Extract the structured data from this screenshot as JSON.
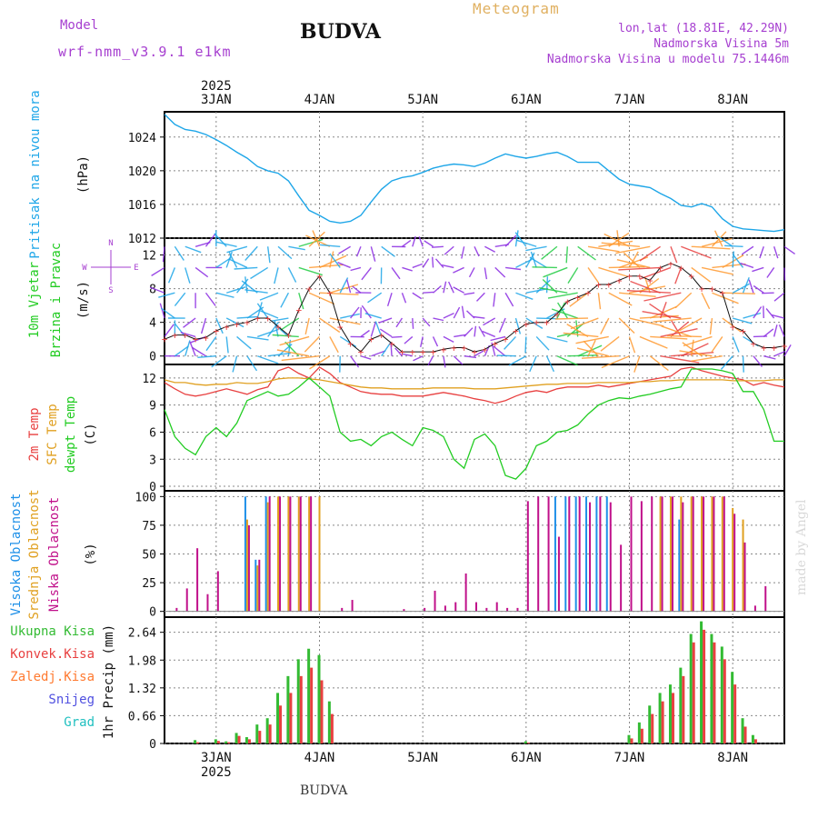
{
  "header": {
    "model_label": "Model",
    "model_name": "wrf-nmm_v3.9.1 e1km",
    "station": "BUDVA",
    "meteogram": "Meteogram",
    "lonlat": "lon,lat (18.81E, 42.29N)",
    "elevation": "Nadmorska Visina 5m",
    "elevation_model": "Nadmorska Visina u modelu 75.1446m",
    "footer_station": "BUDVA",
    "credit": "made by Angel"
  },
  "colors": {
    "pressure": "#1ea6e8",
    "wind_label": "#22cc22",
    "temp2m": "#e84040",
    "sfc_temp": "#e0a020",
    "dewpoint": "#22cc22",
    "high_cloud": "#1e90e8",
    "mid_cloud": "#e0a020",
    "low_cloud": "#c0108a",
    "total_precip": "#33bb33",
    "conv_precip": "#e84040",
    "frozen_precip": "#ff7a30",
    "snow": "#5050e0",
    "hail": "#20c0c0"
  },
  "chart_data": [
    {
      "type": "line",
      "ylabel": [
        "Pritisak na nivou mora",
        "(hPa)"
      ],
      "ylim": [
        1012,
        1027
      ],
      "yticks": [
        "1012",
        "1016",
        "1020",
        "1024"
      ],
      "x": [
        2.5,
        2.6,
        2.7,
        2.8,
        2.9,
        3.0,
        3.1,
        3.2,
        3.3,
        3.4,
        3.5,
        3.6,
        3.7,
        3.8,
        3.9,
        4.0,
        4.1,
        4.2,
        4.3,
        4.4,
        4.5,
        4.6,
        4.7,
        4.8,
        4.9,
        5.0,
        5.1,
        5.2,
        5.3,
        5.4,
        5.5,
        5.6,
        5.7,
        5.8,
        5.9,
        6.0,
        6.1,
        6.2,
        6.3,
        6.4,
        6.5,
        6.6,
        6.7,
        6.8,
        6.9,
        7.0,
        7.1,
        7.2,
        7.3,
        7.4,
        7.5,
        7.6,
        7.7,
        7.8,
        7.9,
        8.0,
        8.1,
        8.2,
        8.3,
        8.4,
        8.5
      ],
      "series": [
        {
          "values": [
            1026.7,
            1025.5,
            1024.9,
            1024.7,
            1024.3,
            1023.7,
            1023.0,
            1022.2,
            1021.5,
            1020.5,
            1020.0,
            1019.7,
            1018.8,
            1017.0,
            1015.3,
            1014.7,
            1014.0,
            1013.8,
            1014.0,
            1014.7,
            1016.3,
            1017.8,
            1018.8,
            1019.2,
            1019.4,
            1019.8,
            1020.3,
            1020.6,
            1020.8,
            1020.7,
            1020.5,
            1020.9,
            1021.5,
            1022.0,
            1021.7,
            1021.5,
            1021.7,
            1022.0,
            1022.2,
            1021.7,
            1021.0,
            1021.0,
            1021.0,
            1020.0,
            1019.0,
            1018.4,
            1018.2,
            1018.0,
            1017.3,
            1016.7,
            1015.9,
            1015.7,
            1016.1,
            1015.7,
            1014.3,
            1013.4,
            1013.1,
            1013.0,
            1012.9,
            1012.8,
            1013.0
          ]
        }
      ]
    },
    {
      "type": "line",
      "ylabel": [
        "10m Vjetar",
        "Brzina i Pravac",
        "(m/s)"
      ],
      "ylim": [
        -1,
        14
      ],
      "yticks": [
        "0",
        "4",
        "8",
        "12"
      ],
      "compass": [
        "N",
        "E",
        "W",
        "S"
      ],
      "x": [
        2.5,
        2.6,
        2.7,
        2.8,
        2.9,
        3.0,
        3.1,
        3.2,
        3.3,
        3.4,
        3.5,
        3.6,
        3.7,
        3.8,
        3.9,
        4.0,
        4.1,
        4.2,
        4.3,
        4.4,
        4.5,
        4.6,
        4.7,
        4.8,
        4.9,
        5.0,
        5.1,
        5.2,
        5.3,
        5.4,
        5.5,
        5.6,
        5.7,
        5.8,
        5.9,
        6.0,
        6.1,
        6.2,
        6.3,
        6.4,
        6.5,
        6.6,
        6.7,
        6.8,
        6.9,
        7.0,
        7.1,
        7.2,
        7.3,
        7.4,
        7.5,
        7.6,
        7.7,
        7.8,
        7.9,
        8.0,
        8.1,
        8.2,
        8.3,
        8.4,
        8.5
      ],
      "series": [
        {
          "values": [
            2.0,
            2.5,
            2.5,
            2.0,
            2.2,
            3.0,
            3.5,
            3.8,
            4.0,
            4.5,
            4.5,
            3.5,
            2.5,
            5.5,
            8.0,
            9.5,
            7.5,
            3.5,
            1.5,
            0.5,
            2.0,
            2.5,
            1.5,
            0.5,
            0.5,
            0.5,
            0.5,
            0.8,
            1.0,
            1.0,
            0.5,
            0.8,
            1.5,
            2.0,
            3.0,
            3.8,
            4.0,
            4.0,
            5.0,
            6.5,
            7.0,
            7.5,
            8.5,
            8.5,
            9.0,
            9.5,
            9.5,
            9.0,
            10.5,
            11.0,
            10.5,
            9.5,
            8.0,
            8.0,
            7.5,
            3.5,
            3.0,
            1.5,
            1.0,
            1.0,
            1.2
          ]
        }
      ]
    },
    {
      "type": "line",
      "ylabel": [
        "2m Temp",
        "SFC Temp",
        "dewpt Temp",
        "(C)"
      ],
      "ylim": [
        -0.5,
        13.5
      ],
      "yticks": [
        "0",
        "3",
        "6",
        "9",
        "12"
      ],
      "x": [
        2.5,
        2.6,
        2.7,
        2.8,
        2.9,
        3.0,
        3.1,
        3.2,
        3.3,
        3.4,
        3.5,
        3.6,
        3.7,
        3.8,
        3.9,
        4.0,
        4.1,
        4.2,
        4.3,
        4.4,
        4.5,
        4.6,
        4.7,
        4.8,
        4.9,
        5.0,
        5.1,
        5.2,
        5.3,
        5.4,
        5.5,
        5.6,
        5.7,
        5.8,
        5.9,
        6.0,
        6.1,
        6.2,
        6.3,
        6.4,
        6.5,
        6.6,
        6.7,
        6.8,
        6.9,
        7.0,
        7.1,
        7.2,
        7.3,
        7.4,
        7.5,
        7.6,
        7.7,
        7.8,
        7.9,
        8.0,
        8.1,
        8.2,
        8.3,
        8.4,
        8.5
      ],
      "series": [
        {
          "name": "2m Temp",
          "values": [
            11.5,
            10.8,
            10.2,
            10.0,
            10.2,
            10.5,
            10.8,
            10.5,
            10.2,
            10.7,
            11.0,
            12.8,
            13.2,
            12.5,
            12.0,
            13.2,
            12.5,
            11.5,
            11.0,
            10.5,
            10.3,
            10.2,
            10.2,
            10.0,
            10.0,
            10.0,
            10.2,
            10.4,
            10.2,
            10.0,
            9.7,
            9.5,
            9.2,
            9.5,
            10.0,
            10.4,
            10.6,
            10.4,
            10.8,
            11.0,
            11.0,
            11.0,
            11.2,
            11.0,
            11.2,
            11.4,
            11.6,
            11.8,
            12.0,
            12.2,
            13.0,
            13.2,
            12.8,
            12.5,
            12.2,
            12.0,
            11.8,
            11.2,
            11.5,
            11.2,
            11.0
          ]
        },
        {
          "name": "SFC Temp",
          "values": [
            11.8,
            11.5,
            11.5,
            11.3,
            11.2,
            11.3,
            11.3,
            11.5,
            11.4,
            11.4,
            11.6,
            11.9,
            12.0,
            12.0,
            11.9,
            11.8,
            11.6,
            11.4,
            11.2,
            11.0,
            10.9,
            10.9,
            10.8,
            10.8,
            10.8,
            10.8,
            10.9,
            10.9,
            10.9,
            10.9,
            10.8,
            10.8,
            10.8,
            10.9,
            11.0,
            11.1,
            11.2,
            11.3,
            11.3,
            11.4,
            11.4,
            11.4,
            11.5,
            11.5,
            11.5,
            11.5,
            11.6,
            11.6,
            11.7,
            11.7,
            11.8,
            11.8,
            11.8,
            11.8,
            11.8,
            11.7,
            11.7,
            11.7,
            11.7,
            11.8,
            11.8
          ]
        },
        {
          "name": "dewpt Temp",
          "values": [
            8.5,
            5.5,
            4.2,
            3.5,
            5.5,
            6.5,
            5.5,
            7.0,
            9.5,
            10.0,
            10.5,
            10.0,
            10.2,
            11.0,
            12.0,
            11.0,
            10.0,
            6.0,
            5.0,
            5.2,
            4.5,
            5.5,
            6.0,
            5.2,
            4.5,
            6.5,
            6.2,
            5.5,
            3.0,
            2.0,
            5.2,
            5.8,
            4.5,
            1.2,
            0.8,
            2.0,
            4.5,
            5.0,
            6.0,
            6.2,
            6.8,
            8.0,
            9.0,
            9.5,
            9.8,
            9.7,
            10.0,
            10.2,
            10.5,
            10.8,
            11.0,
            13.0,
            13.0,
            13.0,
            12.8,
            12.5,
            10.5,
            10.5,
            8.5,
            5.0,
            5.0
          ]
        }
      ]
    },
    {
      "type": "bar",
      "ylabel": [
        "Visoka Oblacnost",
        "Srednja Oblacnost",
        "Niska Oblacnost",
        "(%)"
      ],
      "ylim": [
        -5,
        105
      ],
      "yticks": [
        "0",
        "25",
        "50",
        "75",
        "100"
      ],
      "x": [
        2.5,
        2.6,
        2.7,
        2.8,
        2.9,
        3.0,
        3.1,
        3.2,
        3.3,
        3.4,
        3.5,
        3.6,
        3.7,
        3.8,
        3.9,
        4.0,
        4.1,
        4.2,
        4.3,
        4.4,
        4.5,
        4.6,
        4.7,
        4.8,
        4.9,
        5.0,
        5.1,
        5.2,
        5.3,
        5.4,
        5.5,
        5.6,
        5.7,
        5.8,
        5.9,
        6.0,
        6.1,
        6.2,
        6.3,
        6.4,
        6.5,
        6.6,
        6.7,
        6.8,
        6.9,
        7.0,
        7.1,
        7.2,
        7.3,
        7.4,
        7.5,
        7.6,
        7.7,
        7.8,
        7.9,
        8.0,
        8.1,
        8.2,
        8.3,
        8.4,
        8.5
      ],
      "series": [
        {
          "name": "Visoka Oblacnost",
          "values": [
            0,
            0,
            0,
            0,
            0,
            0,
            0,
            0,
            100,
            45,
            100,
            0,
            0,
            0,
            0,
            0,
            0,
            0,
            0,
            0,
            0,
            0,
            0,
            0,
            0,
            0,
            0,
            0,
            0,
            0,
            0,
            0,
            0,
            0,
            0,
            0,
            0,
            0,
            100,
            100,
            100,
            100,
            100,
            100,
            0,
            0,
            0,
            0,
            0,
            0,
            80,
            0,
            0,
            0,
            0,
            0,
            0,
            0,
            0,
            0,
            0
          ]
        },
        {
          "name": "Srednja Oblacnost",
          "values": [
            0,
            0,
            0,
            0,
            0,
            0,
            0,
            0,
            80,
            40,
            95,
            100,
            100,
            100,
            100,
            100,
            0,
            0,
            0,
            0,
            0,
            0,
            0,
            0,
            0,
            0,
            0,
            0,
            0,
            0,
            0,
            0,
            0,
            0,
            0,
            0,
            0,
            0,
            0,
            0,
            0,
            0,
            0,
            0,
            0,
            0,
            0,
            0,
            100,
            100,
            100,
            100,
            100,
            100,
            100,
            90,
            80,
            0,
            0,
            0,
            0
          ]
        },
        {
          "name": "Niska Oblacnost",
          "values": [
            0,
            3,
            20,
            55,
            15,
            35,
            0,
            0,
            75,
            45,
            100,
            100,
            100,
            100,
            100,
            0,
            0,
            3,
            10,
            0,
            0,
            0,
            0,
            2,
            0,
            3,
            18,
            5,
            8,
            33,
            8,
            3,
            8,
            3,
            3,
            96,
            100,
            100,
            65,
            100,
            100,
            95,
            100,
            95,
            58,
            100,
            96,
            100,
            100,
            100,
            95,
            100,
            100,
            100,
            100,
            85,
            60,
            5,
            22,
            0,
            0
          ]
        }
      ]
    },
    {
      "type": "bar",
      "ylabel": [
        "1hr Precip (mm)"
      ],
      "legend": [
        "Ukupna Kisa",
        "Konvek.Kisa",
        "Zaledj.Kisa",
        "Snijeg",
        "Grad"
      ],
      "ylim": [
        0,
        3.0
      ],
      "yticks": [
        "0",
        "0.66",
        "1.32",
        "1.98",
        "2.64"
      ],
      "x": [
        2.5,
        2.6,
        2.7,
        2.8,
        2.9,
        3.0,
        3.1,
        3.2,
        3.3,
        3.4,
        3.5,
        3.6,
        3.7,
        3.8,
        3.9,
        4.0,
        4.1,
        4.2,
        4.3,
        4.4,
        4.5,
        4.6,
        4.7,
        4.8,
        4.9,
        5.0,
        5.1,
        5.2,
        5.3,
        5.4,
        5.5,
        5.6,
        5.7,
        5.8,
        5.9,
        6.0,
        6.1,
        6.2,
        6.3,
        6.4,
        6.5,
        6.6,
        6.7,
        6.8,
        6.9,
        7.0,
        7.1,
        7.2,
        7.3,
        7.4,
        7.5,
        7.6,
        7.7,
        7.8,
        7.9,
        8.0,
        8.1,
        8.2,
        8.3,
        8.4,
        8.5
      ],
      "series": [
        {
          "name": "Ukupna Kisa",
          "values": [
            0,
            0,
            0,
            0.08,
            0,
            0.1,
            0.05,
            0.25,
            0.15,
            0.45,
            0.6,
            1.2,
            1.6,
            2.0,
            2.25,
            2.1,
            1.0,
            0,
            0,
            0,
            0,
            0,
            0,
            0,
            0,
            0,
            0,
            0,
            0,
            0,
            0,
            0,
            0,
            0,
            0,
            0.05,
            0,
            0,
            0,
            0,
            0,
            0,
            0,
            0,
            0,
            0.2,
            0.5,
            0.9,
            1.2,
            1.4,
            1.8,
            2.6,
            2.9,
            2.6,
            2.3,
            1.7,
            0.6,
            0.2,
            0,
            0,
            0
          ]
        },
        {
          "name": "Konvek.Kisa",
          "values": [
            0,
            0,
            0,
            0.03,
            0,
            0.06,
            0.03,
            0.18,
            0.1,
            0.3,
            0.45,
            0.9,
            1.2,
            1.6,
            1.8,
            1.5,
            0.7,
            0,
            0,
            0,
            0,
            0,
            0,
            0,
            0,
            0,
            0,
            0,
            0,
            0,
            0,
            0,
            0,
            0,
            0,
            0.02,
            0,
            0,
            0,
            0,
            0,
            0,
            0,
            0,
            0,
            0.12,
            0.35,
            0.7,
            1.0,
            1.2,
            1.6,
            2.4,
            2.7,
            2.4,
            2.0,
            1.4,
            0.4,
            0.1,
            0,
            0,
            0
          ]
        }
      ]
    }
  ],
  "x_axis": {
    "ticks": [
      {
        "label": "3JAN",
        "value": 3
      },
      {
        "label": "4JAN",
        "value": 4
      },
      {
        "label": "5JAN",
        "value": 5
      },
      {
        "label": "6JAN",
        "value": 6
      },
      {
        "label": "7JAN",
        "value": 7
      },
      {
        "label": "8JAN",
        "value": 8
      }
    ],
    "year": "2025",
    "range": [
      2.5,
      8.5
    ]
  },
  "wind_arrows": {
    "rows": [
      0,
      2.3,
      4.5,
      7.5,
      10.5,
      13
    ],
    "note_colors": [
      "#8a2be2",
      "#1ea6e8",
      "#22cc44",
      "#ff9a30",
      "#e84040"
    ]
  }
}
